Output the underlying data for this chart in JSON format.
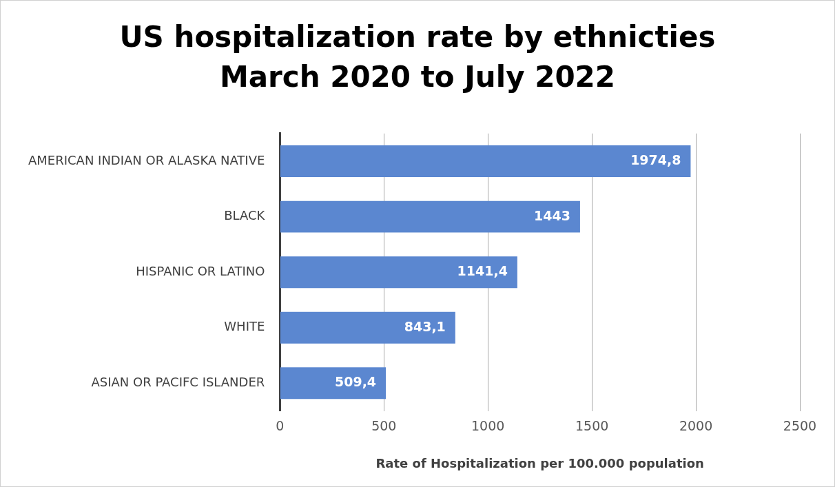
{
  "chart_data": {
    "type": "bar",
    "orientation": "horizontal",
    "title": "US hospitalization rate by ethnicties\nMarch 2020 to July 2022",
    "xlabel": "Rate of Hospitalization per 100.000 population",
    "categories": [
      "AMERICAN INDIAN OR ALASKA NATIVE",
      "BLACK",
      "HISPANIC OR LATINO",
      "WHITE",
      "ASIAN OR PACIFC ISLANDER"
    ],
    "values": [
      1974.8,
      1443,
      1141.4,
      843.1,
      509.4
    ],
    "value_labels": [
      "1974,8",
      "1443",
      "1141,4",
      "843,1",
      "509,4"
    ],
    "color": "#5b87d0",
    "xlim": [
      0,
      2500
    ],
    "xticks": [
      0,
      500,
      1000,
      1500,
      2000,
      2500
    ],
    "grid": "x",
    "legend": false
  }
}
